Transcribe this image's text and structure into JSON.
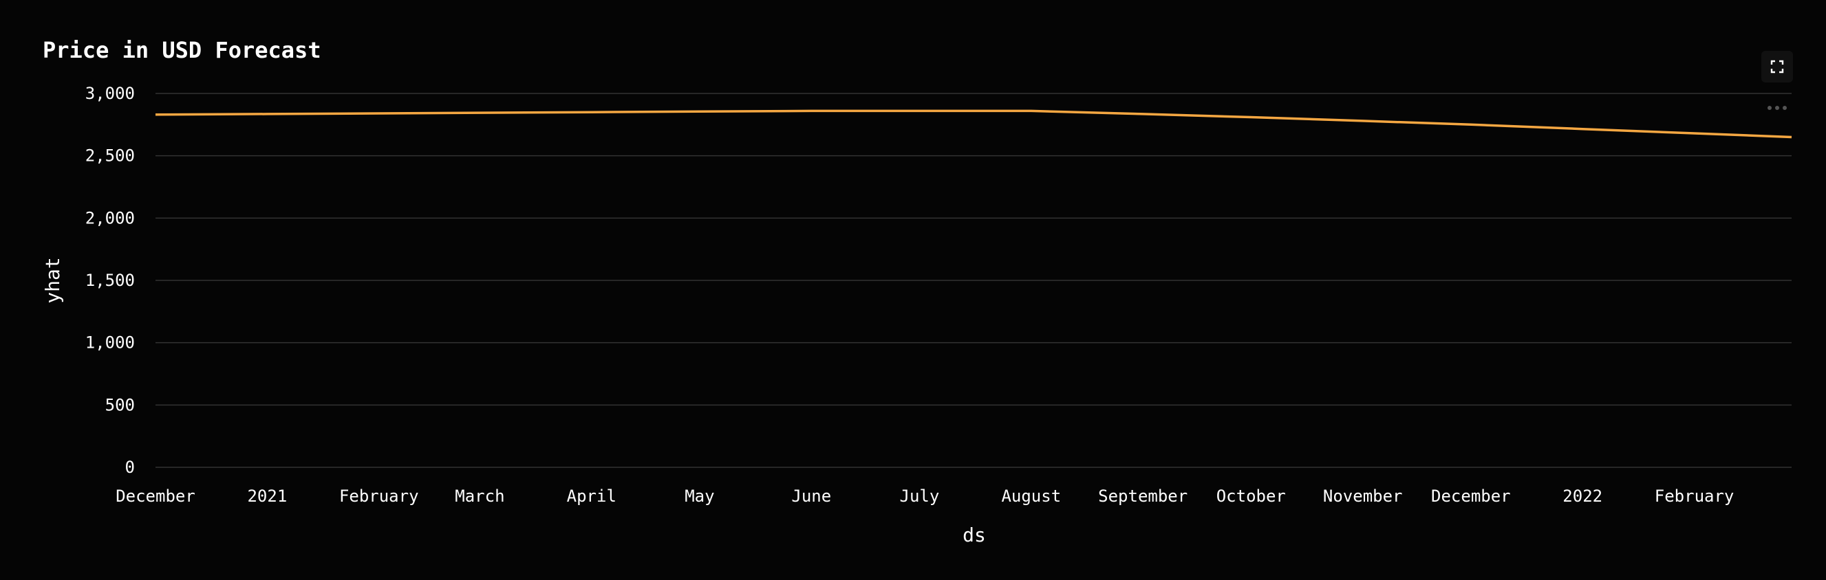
{
  "chart_data": {
    "type": "line",
    "title": "Price in USD Forecast",
    "xlabel": "ds",
    "ylabel": "yhat",
    "ylim": [
      0,
      3000
    ],
    "grid": true,
    "line_color": "#f5a742",
    "background_color": "#050505",
    "grid_color": "#333333",
    "y_ticks": [
      0,
      500,
      1000,
      1500,
      2000,
      2500,
      3000
    ],
    "y_tick_labels": [
      "0",
      "500",
      "1,000",
      "1,500",
      "2,000",
      "2,500",
      "3,000"
    ],
    "x_range": [
      "2020-12-01",
      "2022-02-28"
    ],
    "x_ticks": [
      {
        "date": "2020-12-01",
        "label": "December"
      },
      {
        "date": "2021-01-01",
        "label": "2021"
      },
      {
        "date": "2021-02-01",
        "label": "February"
      },
      {
        "date": "2021-03-01",
        "label": "March"
      },
      {
        "date": "2021-04-01",
        "label": "April"
      },
      {
        "date": "2021-05-01",
        "label": "May"
      },
      {
        "date": "2021-06-01",
        "label": "June"
      },
      {
        "date": "2021-07-01",
        "label": "July"
      },
      {
        "date": "2021-08-01",
        "label": "August"
      },
      {
        "date": "2021-09-01",
        "label": "September"
      },
      {
        "date": "2021-10-01",
        "label": "October"
      },
      {
        "date": "2021-11-01",
        "label": "November"
      },
      {
        "date": "2021-12-01",
        "label": "December"
      },
      {
        "date": "2022-01-01",
        "label": "2022"
      },
      {
        "date": "2022-02-01",
        "label": "February"
      }
    ],
    "series": [
      {
        "points": [
          {
            "x": "2020-12-01",
            "y": 2830
          },
          {
            "x": "2021-01-01",
            "y": 2835
          },
          {
            "x": "2021-02-01",
            "y": 2840
          },
          {
            "x": "2021-03-01",
            "y": 2845
          },
          {
            "x": "2021-04-01",
            "y": 2850
          },
          {
            "x": "2021-05-01",
            "y": 2855
          },
          {
            "x": "2021-06-01",
            "y": 2860
          },
          {
            "x": "2021-07-01",
            "y": 2860
          },
          {
            "x": "2021-08-01",
            "y": 2860
          },
          {
            "x": "2021-09-01",
            "y": 2835
          },
          {
            "x": "2021-10-01",
            "y": 2810
          },
          {
            "x": "2021-11-01",
            "y": 2780
          },
          {
            "x": "2021-12-01",
            "y": 2750
          },
          {
            "x": "2022-01-01",
            "y": 2715
          },
          {
            "x": "2022-02-01",
            "y": 2680
          },
          {
            "x": "2022-02-28",
            "y": 2650
          }
        ]
      }
    ]
  },
  "toolbar": {
    "fullscreen_icon": "fullscreen-icon",
    "more_icon": "more-options-icon"
  }
}
